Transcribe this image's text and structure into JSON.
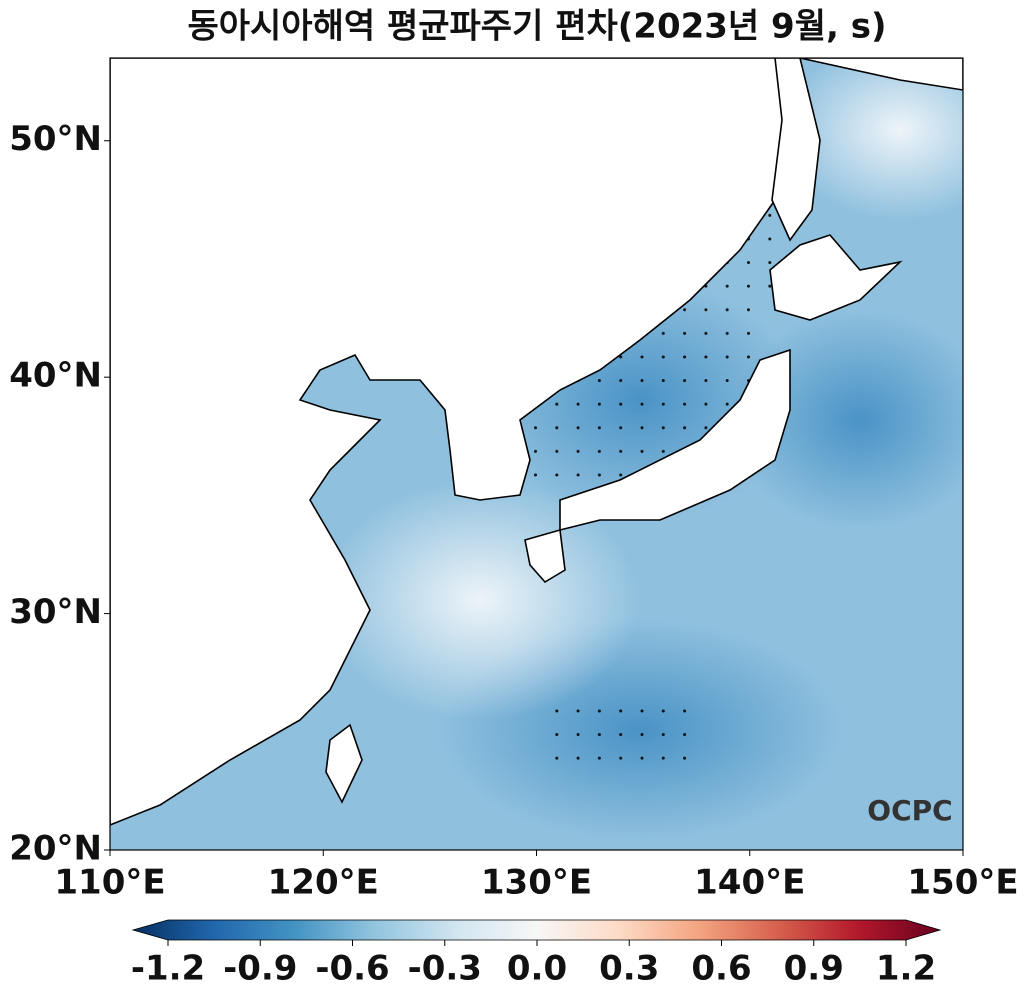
{
  "title": "동아시아해역 평균파주기 편차(2023년 9월, s)",
  "map": {
    "lonlim": [
      110,
      150
    ],
    "latlim": [
      20,
      53.5
    ],
    "lon_ticks": [
      {
        "value": 110,
        "label": "110°E"
      },
      {
        "value": 120,
        "label": "120°E"
      },
      {
        "value": 130,
        "label": "130°E"
      },
      {
        "value": 140,
        "label": "140°E"
      },
      {
        "value": 150,
        "label": "150°E"
      }
    ],
    "lat_ticks": [
      {
        "value": 20,
        "label": "20°N"
      },
      {
        "value": 30,
        "label": "30°N"
      },
      {
        "value": 40,
        "label": "40°N"
      },
      {
        "value": 50,
        "label": "50°N"
      }
    ]
  },
  "colorbar": {
    "lim": [
      -1.2,
      1.2
    ],
    "ticks": [
      -1.2,
      -0.9,
      -0.6,
      -0.3,
      {
        "value": 0,
        "label": "0.0"
      },
      0.3,
      0.6,
      0.9,
      1.2
    ]
  },
  "watermark": "OCPC"
}
